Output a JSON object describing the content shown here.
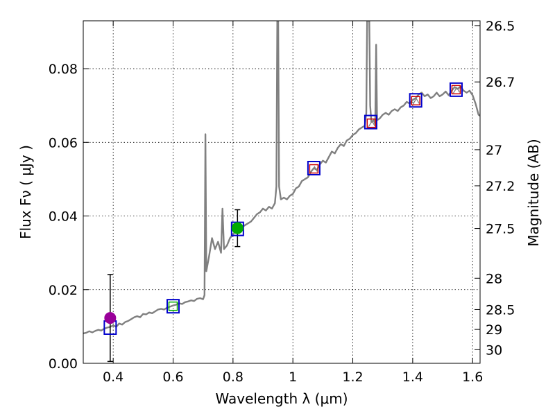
{
  "chart_data": {
    "type": "scatter",
    "xlabel": "Wavelength  λ (μm)",
    "ylabel": "Flux  Fν  ( μJy )",
    "ylabel_right": "Magnitude (AB)",
    "xlim": [
      0.3,
      1.625
    ],
    "ylim": [
      0.0,
      0.093
    ],
    "grid": true,
    "x_ticks": [
      0.4,
      0.6,
      0.8,
      1.0,
      1.2,
      1.4,
      1.6
    ],
    "x_tick_labels": [
      "0.4",
      "0.6",
      "0.8",
      "1",
      "1.2",
      "1.4",
      "1.6"
    ],
    "y_ticks": [
      0.0,
      0.02,
      0.04,
      0.06,
      0.08
    ],
    "y_tick_labels": [
      "0.00",
      "0.02",
      "0.04",
      "0.06",
      "0.08"
    ],
    "right_ticks": [
      {
        "label": "26.5",
        "flux": 0.0917
      },
      {
        "label": "26.7",
        "flux": 0.0764
      },
      {
        "label": "27",
        "flux": 0.058
      },
      {
        "label": "27.2",
        "flux": 0.0482
      },
      {
        "label": "27.5",
        "flux": 0.0366
      },
      {
        "label": "28",
        "flux": 0.0231
      },
      {
        "label": "28.5",
        "flux": 0.0146
      },
      {
        "label": "29",
        "flux": 0.0092
      },
      {
        "label": "30",
        "flux": 0.0037
      }
    ],
    "colors": {
      "spectrum": "#808080",
      "model_box": "#0000cc",
      "nir_marker": "#cc0000",
      "green_marker": "#00aa00",
      "purple_marker": "#990099",
      "errorbar": "#000000"
    },
    "series": [
      {
        "name": "model spectrum",
        "kind": "line",
        "points": [
          [
            0.3,
            0.0081
          ],
          [
            0.31,
            0.0083
          ],
          [
            0.32,
            0.0087
          ],
          [
            0.33,
            0.0084
          ],
          [
            0.34,
            0.0088
          ],
          [
            0.35,
            0.0091
          ],
          [
            0.36,
            0.0089
          ],
          [
            0.37,
            0.0094
          ],
          [
            0.38,
            0.0097
          ],
          [
            0.39,
            0.0099
          ],
          [
            0.4,
            0.0103
          ],
          [
            0.41,
            0.0099
          ],
          [
            0.42,
            0.0108
          ],
          [
            0.43,
            0.0105
          ],
          [
            0.44,
            0.0112
          ],
          [
            0.45,
            0.0115
          ],
          [
            0.46,
            0.012
          ],
          [
            0.47,
            0.0125
          ],
          [
            0.48,
            0.0128
          ],
          [
            0.49,
            0.0125
          ],
          [
            0.5,
            0.0134
          ],
          [
            0.51,
            0.0133
          ],
          [
            0.52,
            0.0138
          ],
          [
            0.53,
            0.0136
          ],
          [
            0.54,
            0.0141
          ],
          [
            0.55,
            0.0146
          ],
          [
            0.56,
            0.0148
          ],
          [
            0.57,
            0.0146
          ],
          [
            0.58,
            0.0151
          ],
          [
            0.59,
            0.0154
          ],
          [
            0.6,
            0.0157
          ],
          [
            0.61,
            0.0159
          ],
          [
            0.62,
            0.0163
          ],
          [
            0.63,
            0.0161
          ],
          [
            0.64,
            0.0166
          ],
          [
            0.65,
            0.0168
          ],
          [
            0.66,
            0.0171
          ],
          [
            0.67,
            0.0169
          ],
          [
            0.68,
            0.0175
          ],
          [
            0.69,
            0.0177
          ],
          [
            0.7,
            0.0174
          ],
          [
            0.705,
            0.0185
          ],
          [
            0.708,
            0.0622
          ],
          [
            0.711,
            0.025
          ],
          [
            0.72,
            0.029
          ],
          [
            0.73,
            0.034
          ],
          [
            0.74,
            0.031
          ],
          [
            0.75,
            0.033
          ],
          [
            0.76,
            0.03
          ],
          [
            0.765,
            0.042
          ],
          [
            0.77,
            0.031
          ],
          [
            0.78,
            0.032
          ],
          [
            0.79,
            0.034
          ],
          [
            0.8,
            0.035
          ],
          [
            0.81,
            0.036
          ],
          [
            0.82,
            0.0355
          ],
          [
            0.83,
            0.037
          ],
          [
            0.84,
            0.0375
          ],
          [
            0.85,
            0.038
          ],
          [
            0.86,
            0.0385
          ],
          [
            0.87,
            0.0395
          ],
          [
            0.88,
            0.0405
          ],
          [
            0.89,
            0.041
          ],
          [
            0.9,
            0.042
          ],
          [
            0.91,
            0.0415
          ],
          [
            0.92,
            0.0425
          ],
          [
            0.93,
            0.042
          ],
          [
            0.94,
            0.0435
          ],
          [
            0.945,
            0.048
          ],
          [
            0.948,
            0.093
          ],
          [
            0.951,
            0.093
          ],
          [
            0.954,
            0.048
          ],
          [
            0.96,
            0.0445
          ],
          [
            0.97,
            0.045
          ],
          [
            0.98,
            0.0445
          ],
          [
            0.99,
            0.0455
          ],
          [
            1.0,
            0.046
          ],
          [
            1.01,
            0.0475
          ],
          [
            1.02,
            0.048
          ],
          [
            1.03,
            0.0495
          ],
          [
            1.04,
            0.05
          ],
          [
            1.05,
            0.0505
          ],
          [
            1.06,
            0.052
          ],
          [
            1.07,
            0.053
          ],
          [
            1.08,
            0.0525
          ],
          [
            1.09,
            0.054
          ],
          [
            1.1,
            0.055
          ],
          [
            1.11,
            0.0545
          ],
          [
            1.12,
            0.056
          ],
          [
            1.13,
            0.0575
          ],
          [
            1.14,
            0.057
          ],
          [
            1.15,
            0.0585
          ],
          [
            1.16,
            0.0595
          ],
          [
            1.17,
            0.059
          ],
          [
            1.18,
            0.0605
          ],
          [
            1.19,
            0.061
          ],
          [
            1.2,
            0.062
          ],
          [
            1.21,
            0.0625
          ],
          [
            1.22,
            0.0635
          ],
          [
            1.23,
            0.064
          ],
          [
            1.24,
            0.0645
          ],
          [
            1.245,
            0.068
          ],
          [
            1.248,
            0.093
          ],
          [
            1.255,
            0.093
          ],
          [
            1.258,
            0.07
          ],
          [
            1.262,
            0.0655
          ],
          [
            1.27,
            0.066
          ],
          [
            1.275,
            0.065
          ],
          [
            1.278,
            0.0865
          ],
          [
            1.281,
            0.066
          ],
          [
            1.29,
            0.0665
          ],
          [
            1.3,
            0.0675
          ],
          [
            1.31,
            0.068
          ],
          [
            1.32,
            0.0675
          ],
          [
            1.33,
            0.0685
          ],
          [
            1.34,
            0.069
          ],
          [
            1.35,
            0.0685
          ],
          [
            1.36,
            0.0695
          ],
          [
            1.37,
            0.07
          ],
          [
            1.38,
            0.071
          ],
          [
            1.39,
            0.0705
          ],
          [
            1.4,
            0.0715
          ],
          [
            1.41,
            0.072
          ],
          [
            1.42,
            0.073
          ],
          [
            1.43,
            0.0735
          ],
          [
            1.44,
            0.0725
          ],
          [
            1.45,
            0.073
          ],
          [
            1.46,
            0.072
          ],
          [
            1.47,
            0.0725
          ],
          [
            1.48,
            0.0735
          ],
          [
            1.49,
            0.0725
          ],
          [
            1.5,
            0.073
          ],
          [
            1.51,
            0.0738
          ],
          [
            1.52,
            0.0728
          ],
          [
            1.53,
            0.074
          ],
          [
            1.54,
            0.075
          ],
          [
            1.55,
            0.0745
          ],
          [
            1.56,
            0.0752
          ],
          [
            1.57,
            0.074
          ],
          [
            1.58,
            0.0735
          ],
          [
            1.59,
            0.074
          ],
          [
            1.6,
            0.0728
          ],
          [
            1.61,
            0.0705
          ],
          [
            1.62,
            0.0675
          ],
          [
            1.625,
            0.0672
          ]
        ]
      },
      {
        "name": "model photometry",
        "kind": "box",
        "x": [
          0.39,
          0.6,
          0.815,
          1.07,
          1.26,
          1.41,
          1.545
        ],
        "y": [
          0.0097,
          0.0155,
          0.0365,
          0.053,
          0.0655,
          0.0714,
          0.0743
        ]
      },
      {
        "name": "observed NIR",
        "kind": "square",
        "x": [
          1.07,
          1.262,
          1.41,
          1.545
        ],
        "y": [
          0.0528,
          0.0652,
          0.0713,
          0.0743
        ]
      },
      {
        "name": "observed F606W",
        "kind": "square",
        "x": [
          0.6
        ],
        "y": [
          0.0155
        ]
      },
      {
        "name": "observed optical",
        "kind": "circle",
        "points": [
          {
            "x": 0.39,
            "y": 0.0123,
            "err": 0.0118,
            "color": "#990099"
          },
          {
            "x": 0.815,
            "y": 0.0367,
            "err": 0.005,
            "color": "#00aa00"
          }
        ]
      }
    ]
  }
}
